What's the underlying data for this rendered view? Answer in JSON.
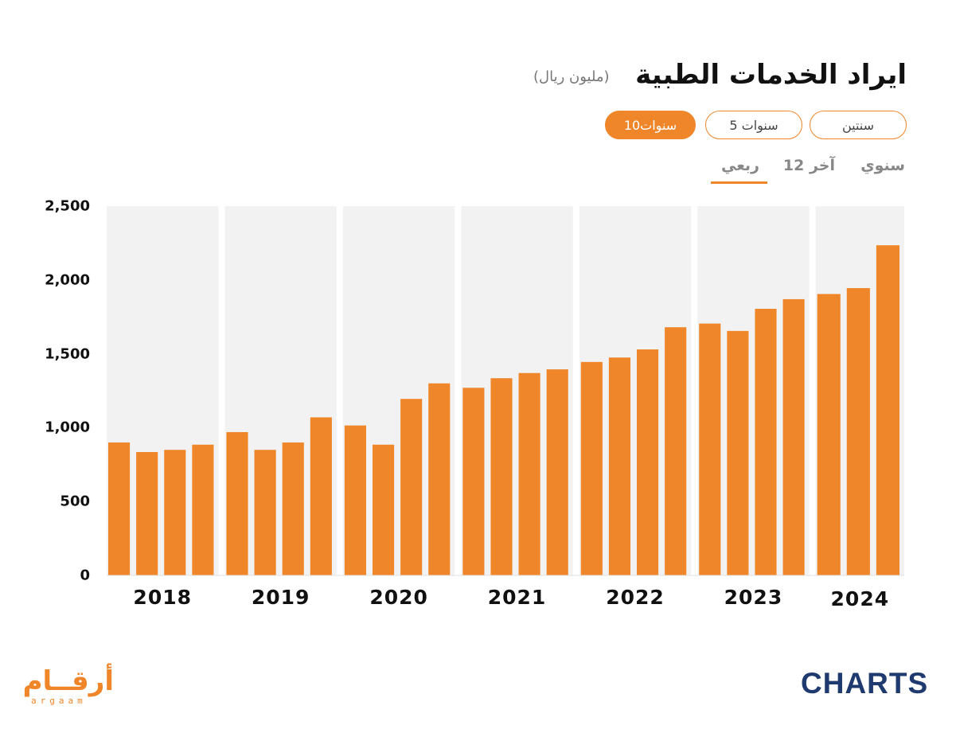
{
  "header": {
    "title": "ايراد الخدمات الطبية",
    "unit": "(مليون ريال)"
  },
  "range_buttons": [
    {
      "label": "سنتين",
      "active": false
    },
    {
      "label": "5 سنوات",
      "active": false
    },
    {
      "label": "10سنوات",
      "active": true
    }
  ],
  "period_tabs": [
    {
      "label": "سنوي",
      "active": false
    },
    {
      "label": "آخر 12",
      "active": false
    },
    {
      "label": "ربعي",
      "active": true
    }
  ],
  "colors": {
    "accent": "#f0862a",
    "band": "#f2f2f2",
    "brand_dark": "#1e3a6e"
  },
  "logos": {
    "argaam_ar": "أرقــام",
    "argaam_en": "argaam",
    "charts": "CHARTS"
  },
  "chart_data": {
    "type": "bar",
    "ylim": [
      0,
      2500
    ],
    "yticks": [
      "0",
      "500",
      "1,000",
      "1,500",
      "2,000",
      "2,500"
    ],
    "ytick_values": [
      0,
      500,
      1000,
      1500,
      2000,
      2500
    ],
    "groups": [
      "2018",
      "2019",
      "2020",
      "2021",
      "2022",
      "2023",
      "2024"
    ],
    "values_per_group": [
      [
        900,
        835,
        850,
        885
      ],
      [
        970,
        850,
        900,
        1070
      ],
      [
        1015,
        885,
        1195,
        1300
      ],
      [
        1270,
        1335,
        1370,
        1395
      ],
      [
        1445,
        1475,
        1530,
        1680
      ],
      [
        1705,
        1655,
        1805,
        1870
      ],
      [
        1905,
        1945,
        2235
      ]
    ],
    "grid": false,
    "legend": "none"
  }
}
